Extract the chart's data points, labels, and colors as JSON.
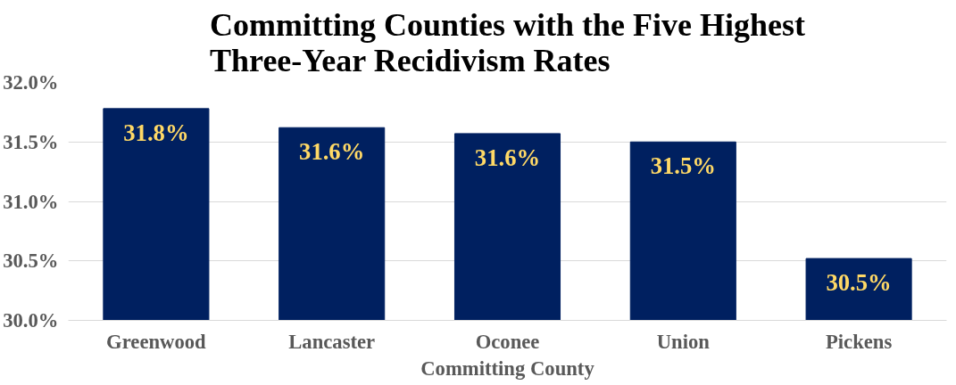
{
  "chart_data": {
    "type": "bar",
    "title": "Committing Counties with the Five Highest\nThree-Year Recidivism Rates",
    "xlabel": "Committing County",
    "categories": [
      "Greenwood",
      "Lancaster",
      "Oconee",
      "Union",
      "Pickens"
    ],
    "values": [
      31.78,
      31.62,
      31.57,
      31.5,
      30.52
    ],
    "value_labels": [
      "31.8%",
      "31.6%",
      "31.6%",
      "31.5%",
      "30.5%"
    ],
    "color": "#002060",
    "ylim": [
      30.0,
      32.0
    ],
    "yticks": [
      {
        "value": 30.0,
        "label": "30.0%"
      },
      {
        "value": 30.5,
        "label": "30.5%"
      },
      {
        "value": 31.0,
        "label": "31.0%"
      },
      {
        "value": 31.5,
        "label": "31.5%"
      },
      {
        "value": 32.0,
        "label": "32.0%"
      }
    ],
    "grid": "y"
  }
}
